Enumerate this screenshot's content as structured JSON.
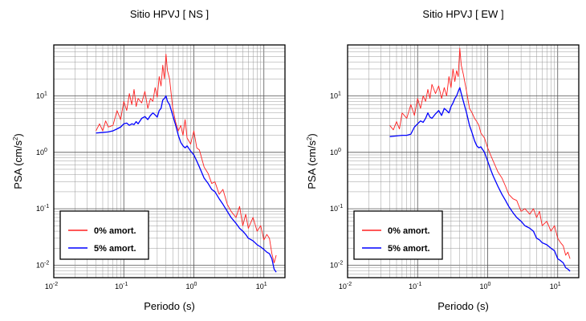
{
  "chart_data": [
    {
      "type": "line",
      "title": "Sitio HPVJ [ NS ]",
      "xlabel": "Periodo (s)",
      "ylabel": "PSA (cm/s²)",
      "xscale": "log",
      "yscale": "log",
      "xlim": [
        0.01,
        20
      ],
      "ylim": [
        0.006,
        80
      ],
      "grid": true,
      "legend_position": "bottom-left",
      "xticks": [
        {
          "base": "10",
          "exp": "-2",
          "value": 0.01
        },
        {
          "base": "10",
          "exp": "-1",
          "value": 0.1
        },
        {
          "base": "10",
          "exp": "0",
          "value": 1
        },
        {
          "base": "10",
          "exp": "1",
          "value": 10
        }
      ],
      "yticks": [
        {
          "base": "10",
          "exp": "-2",
          "value": 0.01
        },
        {
          "base": "10",
          "exp": "-1",
          "value": 0.1
        },
        {
          "base": "10",
          "exp": "0",
          "value": 1
        },
        {
          "base": "10",
          "exp": "1",
          "value": 10
        }
      ],
      "series": [
        {
          "name": "0% amort.",
          "color": "#ff2020",
          "x": [
            0.04,
            0.045,
            0.05,
            0.055,
            0.06,
            0.07,
            0.08,
            0.09,
            0.1,
            0.11,
            0.12,
            0.13,
            0.14,
            0.15,
            0.16,
            0.18,
            0.2,
            0.22,
            0.24,
            0.26,
            0.28,
            0.3,
            0.32,
            0.34,
            0.36,
            0.38,
            0.4,
            0.42,
            0.45,
            0.5,
            0.55,
            0.6,
            0.65,
            0.7,
            0.75,
            0.8,
            0.9,
            1.0,
            1.1,
            1.2,
            1.4,
            1.6,
            1.8,
            2.0,
            2.3,
            2.6,
            3.0,
            3.4,
            4.0,
            4.5,
            5.0,
            5.5,
            6.0,
            7.0,
            8.0,
            9.0,
            10.0,
            11.0,
            12.0,
            13.0,
            14.0,
            15.0
          ],
          "y": [
            2.4,
            3.2,
            2.4,
            3.6,
            2.8,
            3.0,
            5.5,
            3.8,
            8.0,
            5.5,
            11.0,
            7.0,
            13.0,
            6.5,
            9.0,
            7.5,
            12.0,
            6.0,
            9.0,
            8.0,
            14.0,
            9.5,
            22.0,
            15.0,
            35.0,
            20.0,
            55.0,
            28.0,
            20.0,
            6.0,
            3.4,
            2.4,
            3.0,
            2.0,
            3.8,
            1.8,
            1.4,
            2.4,
            1.2,
            1.1,
            0.55,
            0.42,
            0.28,
            0.3,
            0.18,
            0.22,
            0.12,
            0.09,
            0.07,
            0.11,
            0.05,
            0.08,
            0.045,
            0.07,
            0.04,
            0.05,
            0.028,
            0.035,
            0.03,
            0.016,
            0.011,
            0.015
          ]
        },
        {
          "name": "5% amort.",
          "color": "#0000ff",
          "x": [
            0.04,
            0.05,
            0.06,
            0.07,
            0.08,
            0.09,
            0.1,
            0.11,
            0.12,
            0.13,
            0.14,
            0.15,
            0.16,
            0.18,
            0.2,
            0.22,
            0.24,
            0.26,
            0.28,
            0.3,
            0.32,
            0.34,
            0.36,
            0.38,
            0.4,
            0.42,
            0.45,
            0.5,
            0.55,
            0.6,
            0.65,
            0.7,
            0.75,
            0.8,
            0.9,
            1.0,
            1.1,
            1.2,
            1.4,
            1.6,
            1.8,
            2.0,
            2.3,
            2.6,
            3.0,
            3.4,
            4.0,
            4.5,
            5.0,
            5.5,
            6.0,
            7.0,
            8.0,
            9.0,
            10.0,
            11.0,
            12.0,
            13.0,
            14.0,
            15.0
          ],
          "y": [
            2.2,
            2.25,
            2.3,
            2.4,
            2.6,
            2.8,
            3.2,
            3.3,
            3.0,
            3.2,
            3.1,
            3.5,
            3.2,
            4.0,
            4.3,
            3.8,
            4.5,
            5.0,
            4.6,
            4.2,
            5.5,
            6.0,
            8.5,
            9.0,
            10.0,
            8.0,
            7.0,
            4.5,
            3.0,
            2.0,
            1.5,
            1.3,
            1.2,
            1.3,
            1.05,
            0.9,
            0.7,
            0.55,
            0.35,
            0.28,
            0.22,
            0.2,
            0.15,
            0.12,
            0.09,
            0.07,
            0.055,
            0.045,
            0.04,
            0.035,
            0.03,
            0.027,
            0.023,
            0.021,
            0.019,
            0.017,
            0.016,
            0.013,
            0.0085,
            0.0075
          ]
        }
      ]
    },
    {
      "type": "line",
      "title": "Sitio HPVJ [ EW ]",
      "xlabel": "Periodo (s)",
      "ylabel": "PSA (cm/s²)",
      "xscale": "log",
      "yscale": "log",
      "xlim": [
        0.01,
        20
      ],
      "ylim": [
        0.006,
        80
      ],
      "grid": true,
      "legend_position": "bottom-left",
      "xticks": [
        {
          "base": "10",
          "exp": "-2",
          "value": 0.01
        },
        {
          "base": "10",
          "exp": "-1",
          "value": 0.1
        },
        {
          "base": "10",
          "exp": "0",
          "value": 1
        },
        {
          "base": "10",
          "exp": "1",
          "value": 10
        }
      ],
      "yticks": [
        {
          "base": "10",
          "exp": "-2",
          "value": 0.01
        },
        {
          "base": "10",
          "exp": "-1",
          "value": 0.1
        },
        {
          "base": "10",
          "exp": "0",
          "value": 1
        },
        {
          "base": "10",
          "exp": "1",
          "value": 10
        }
      ],
      "series": [
        {
          "name": "0% amort.",
          "color": "#ff2020",
          "x": [
            0.04,
            0.045,
            0.05,
            0.055,
            0.06,
            0.07,
            0.08,
            0.09,
            0.1,
            0.11,
            0.12,
            0.13,
            0.14,
            0.15,
            0.16,
            0.18,
            0.2,
            0.22,
            0.24,
            0.26,
            0.28,
            0.3,
            0.32,
            0.34,
            0.36,
            0.38,
            0.4,
            0.42,
            0.45,
            0.5,
            0.55,
            0.6,
            0.65,
            0.7,
            0.75,
            0.8,
            0.9,
            1.0,
            1.1,
            1.2,
            1.4,
            1.6,
            1.8,
            2.0,
            2.3,
            2.6,
            3.0,
            3.4,
            4.0,
            4.5,
            5.0,
            5.5,
            6.0,
            7.0,
            8.0,
            9.0,
            10.0,
            11.0,
            12.0,
            13.0,
            14.0,
            15.0
          ],
          "y": [
            3.0,
            2.5,
            3.5,
            2.6,
            5.0,
            4.0,
            7.0,
            4.5,
            9.0,
            6.0,
            10.0,
            8.0,
            13.0,
            9.0,
            16.0,
            11.0,
            15.0,
            9.0,
            14.0,
            10.0,
            22.0,
            14.0,
            30.0,
            18.0,
            28.0,
            22.0,
            70.0,
            35.0,
            24.0,
            12.0,
            6.0,
            5.0,
            4.0,
            3.5,
            3.0,
            2.2,
            1.8,
            1.2,
            0.9,
            0.7,
            0.45,
            0.35,
            0.25,
            0.18,
            0.15,
            0.14,
            0.09,
            0.1,
            0.08,
            0.1,
            0.07,
            0.09,
            0.05,
            0.06,
            0.04,
            0.05,
            0.03,
            0.025,
            0.022,
            0.015,
            0.017,
            0.013
          ]
        },
        {
          "name": "5% amort.",
          "color": "#0000ff",
          "x": [
            0.04,
            0.05,
            0.06,
            0.07,
            0.08,
            0.09,
            0.1,
            0.11,
            0.12,
            0.13,
            0.14,
            0.15,
            0.16,
            0.18,
            0.2,
            0.22,
            0.24,
            0.26,
            0.28,
            0.3,
            0.32,
            0.34,
            0.36,
            0.38,
            0.4,
            0.42,
            0.45,
            0.5,
            0.55,
            0.6,
            0.65,
            0.7,
            0.75,
            0.8,
            0.9,
            1.0,
            1.1,
            1.2,
            1.4,
            1.6,
            1.8,
            2.0,
            2.3,
            2.6,
            3.0,
            3.4,
            4.0,
            4.5,
            5.0,
            5.5,
            6.0,
            7.0,
            8.0,
            9.0,
            10.0,
            11.0,
            12.0,
            13.0,
            14.0,
            15.0
          ],
          "y": [
            1.9,
            1.95,
            2.0,
            2.0,
            2.1,
            2.8,
            3.2,
            3.6,
            3.4,
            4.0,
            5.0,
            4.2,
            4.0,
            4.8,
            5.5,
            4.5,
            6.0,
            5.5,
            5.0,
            6.5,
            7.5,
            9.0,
            10.0,
            12.0,
            14.0,
            11.0,
            8.0,
            5.0,
            3.0,
            2.2,
            1.6,
            1.3,
            1.2,
            1.25,
            1.0,
            0.7,
            0.5,
            0.38,
            0.25,
            0.18,
            0.14,
            0.11,
            0.085,
            0.07,
            0.06,
            0.05,
            0.045,
            0.04,
            0.03,
            0.028,
            0.025,
            0.023,
            0.02,
            0.018,
            0.013,
            0.012,
            0.011,
            0.009,
            0.0085,
            0.0078
          ]
        }
      ]
    }
  ]
}
